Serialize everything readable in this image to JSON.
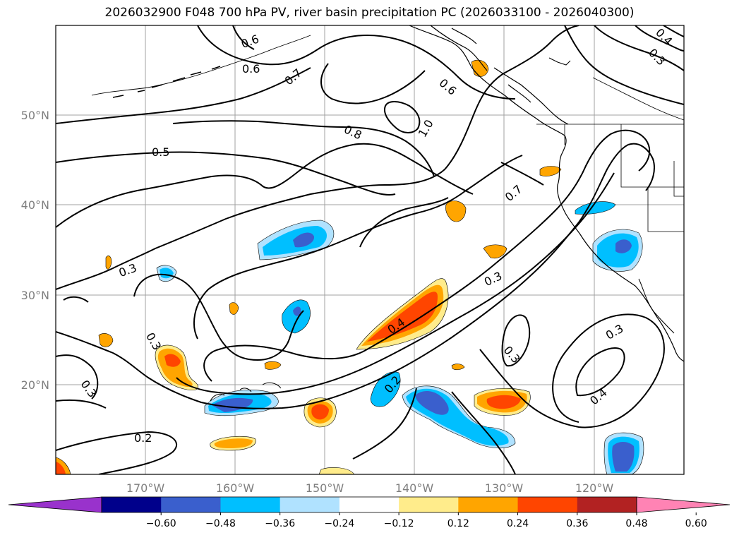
{
  "title": "2026032900 F048 700 hPa PV, river basin precipitation PC (2026033100 - 2026040300)",
  "map": {
    "lat_labels": [
      "50°N",
      "40°N",
      "30°N",
      "20°N"
    ],
    "lon_labels": [
      "170°W",
      "160°W",
      "150°W",
      "140°W",
      "130°W",
      "120°W"
    ],
    "contour_labels": [
      "0.6",
      "0.6",
      "0.7",
      "0.6",
      "0.4",
      "0.3",
      "1.0",
      "0.8",
      "0.5",
      "0.7",
      "0.3",
      "0.3",
      "0.4",
      "0.3",
      "0.3",
      "0.3",
      "0.4",
      "0.2",
      "0.3",
      "0.2"
    ]
  },
  "colorbar": {
    "ticks": [
      "−0.60",
      "−0.48",
      "−0.36",
      "−0.24",
      "−0.12",
      "0.12",
      "0.24",
      "0.36",
      "0.48",
      "0.60"
    ],
    "colors": [
      "#9932cc",
      "#00008b",
      "#3a5fcd",
      "#00bfff",
      "#b0e2ff",
      "#ffffff",
      "#ffec8b",
      "#ffa500",
      "#ff4500",
      "#b22222",
      "#ff83b4"
    ]
  }
}
